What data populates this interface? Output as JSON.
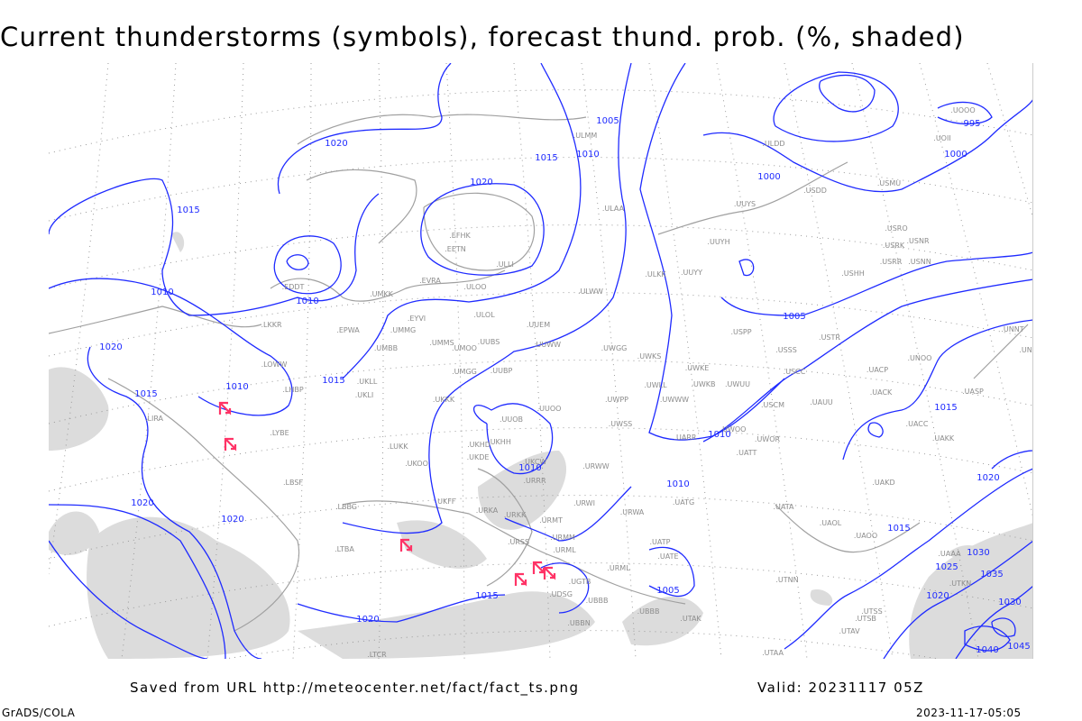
{
  "title": "Current thunderstorms (symbols), forecast thund. prob. (%, shaded)",
  "footer": {
    "source": "Saved from URL http://meteocenter.net/fact/fact_ts.png",
    "valid": "Valid: 20231117 05Z",
    "software": "GrADS/COLA",
    "timestamp": "2023-11-17-05:05"
  },
  "colors": {
    "isobar": "#1f2bff",
    "station": "#8c8c8c",
    "coast": "#a0a0a0",
    "grid": "#9a9a9a",
    "shading": "#dcdcdc",
    "thunderstorm": "#ff3366"
  },
  "icons": {
    "thunderstorm": "thunderstorm-symbol-icon"
  },
  "isobar_labels": [
    "1020",
    "1015",
    "1010",
    "1005",
    "1010",
    "1015",
    "1020",
    "1000",
    "995",
    "1000",
    "1015",
    "1010",
    "1010",
    "1020",
    "1015",
    "1010",
    "1005",
    "1010",
    "1015",
    "1020",
    "1020",
    "1010",
    "1020",
    "1015",
    "1015",
    "1020",
    "1030",
    "1025",
    "1020",
    "1035",
    "1030",
    "1045",
    "1040",
    "1005"
  ],
  "stations": [
    "ULMM",
    "ULAA",
    "UUYS",
    "UUYH",
    "EFHK",
    "EETN",
    "ULLI",
    "ULOO",
    "EVRA",
    "EDDT",
    "UMKK",
    "ULWW",
    "ULKK",
    "UUYY",
    "EYVI",
    "ULOL",
    "UUEM",
    "EPWA",
    "UMMG",
    "LKKR",
    "UMMS",
    "UMOO",
    "UUBS",
    "UUWW",
    "UWGG",
    "UMBB",
    "UWKS",
    "LOWW",
    "UMGG",
    "UUBP",
    "UKLL",
    "UKLI",
    "LHBP",
    "UKKK",
    "UUOO",
    "UWPP",
    "LIRA",
    "UUOB",
    "UWSS",
    "UKHH",
    "UKHD",
    "LYBE",
    "LUKK",
    "UKOO",
    "UKDE",
    "UKCW",
    "URRR",
    "URWW",
    "UKFF",
    "URKA",
    "URKK",
    "URWI",
    "URWA",
    "UATG",
    "UATA",
    "UAOL",
    "UAOO",
    "LBSF",
    "LBBG",
    "URMT",
    "URMM",
    "URSS",
    "URML",
    "UATP",
    "UATE",
    "LTBA",
    "UGTB",
    "UBBB",
    "UBBN",
    "UDSG",
    "UBBB",
    "UTAK",
    "UTNN",
    "UTAA",
    "UTAV",
    "UTSB",
    "UTSS",
    "UTKN",
    "UAKD",
    "UAAA",
    "UACC",
    "UAKK",
    "UASP",
    "UACK",
    "UNOO",
    "UACP",
    "USCC",
    "USSS",
    "USTR",
    "USPP",
    "UWKE",
    "UWKB",
    "UWUU",
    "UWWW",
    "UWLL",
    "USCM",
    "UAUU",
    "UWOO",
    "UARR",
    "UWOR",
    "UATT",
    "UNNT",
    "UNBB",
    "USHH",
    "USRR",
    "USNN",
    "USRK",
    "USNR",
    "USRO",
    "USMU",
    "USDD",
    "ULDD",
    "UOII",
    "UOOO",
    "URML",
    "LTCR"
  ]
}
